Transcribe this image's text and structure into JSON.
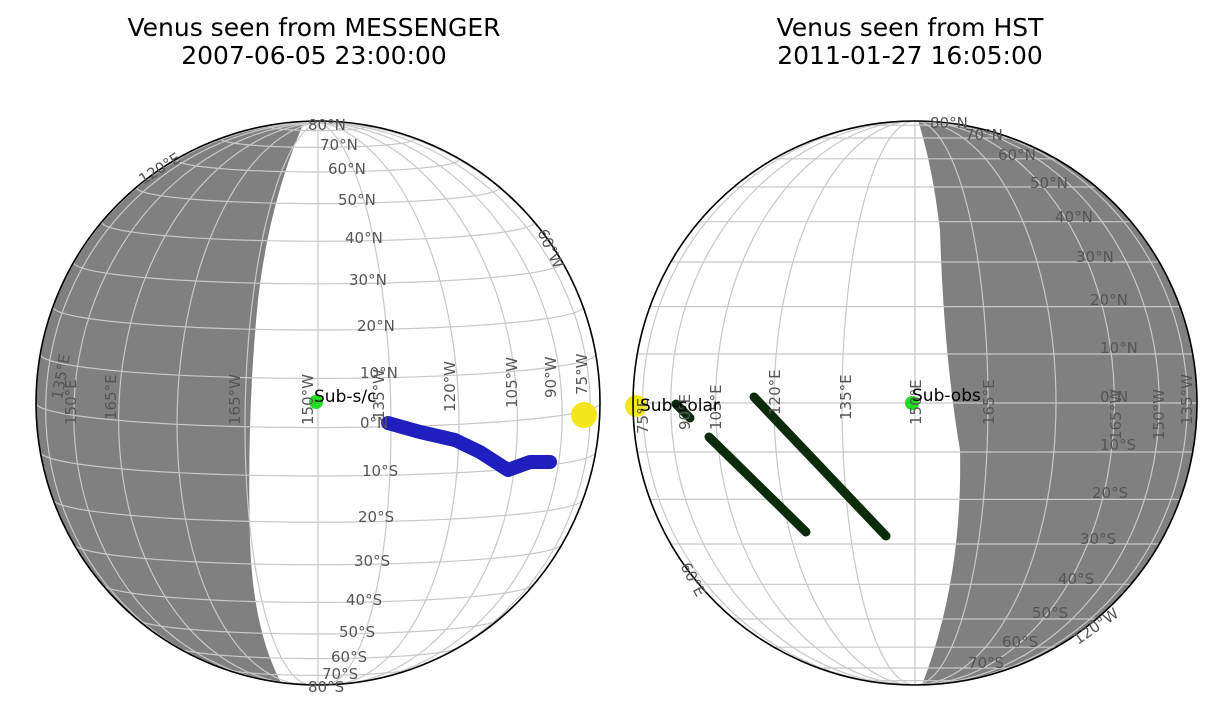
{
  "panels": [
    {
      "title": "Venus seen from MESSENGER",
      "datetime": "2007-06-05 23:00:00",
      "marker_label": "Sub-s/c",
      "lat_labels": [
        "80°N",
        "70°N",
        "60°N",
        "50°N",
        "40°N",
        "30°N",
        "20°N",
        "10°N",
        "0°N",
        "10°S",
        "20°S",
        "30°S",
        "40°S",
        "50°S",
        "60°S",
        "70°S",
        "80°S"
      ],
      "lon_labels": [
        "150°E",
        "165°E",
        "165°W",
        "150°W",
        "135°W",
        "120°W",
        "105°W",
        "90°W",
        "75°W",
        "60°W",
        "120°E",
        "135°E"
      ],
      "colors": {
        "night": "#808080",
        "track": "#1f1fc0",
        "subpoint": "#22dd22",
        "sun": "#f5e61c"
      }
    },
    {
      "title": "Venus seen from HST",
      "datetime": "2011-01-27 16:05:00",
      "marker_label": "Sub-obs",
      "sun_label": "Sub-solar",
      "lat_labels": [
        "80°N",
        "70°N",
        "60°N",
        "50°N",
        "40°N",
        "30°N",
        "20°N",
        "10°N",
        "0°N",
        "10°S",
        "20°S",
        "30°S",
        "40°S",
        "50°S",
        "60°S",
        "70°S"
      ],
      "lon_labels": [
        "75°E",
        "90°E",
        "105°E",
        "120°E",
        "135°E",
        "150°E",
        "165°E",
        "165°W",
        "150°W",
        "135°W",
        "60°E",
        "120°W"
      ],
      "colors": {
        "night": "#808080",
        "track": "#0c2a0c",
        "subpoint": "#22dd22",
        "sun": "#f5e61c"
      }
    }
  ]
}
